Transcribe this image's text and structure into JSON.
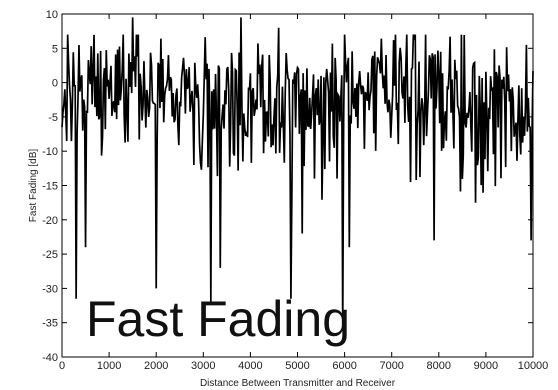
{
  "chart_data": {
    "type": "line",
    "title": "",
    "xlabel": "Distance Between Transmitter and Receiver",
    "ylabel": "Fast Fading [dB]",
    "xlim": [
      0,
      10000
    ],
    "ylim": [
      -40,
      10
    ],
    "grid": false,
    "x_ticks": [
      0,
      1000,
      2000,
      3000,
      4000,
      5000,
      6000,
      7000,
      8000,
      9000,
      10000
    ],
    "y_ticks": [
      10,
      5,
      0,
      -5,
      -10,
      -15,
      -20,
      -25,
      -30,
      -35,
      -40
    ],
    "annotation": "Fast Fading",
    "series": [
      {
        "color": "#000000",
        "sample_step": 20,
        "deep_fades": [
          {
            "x": 300,
            "y": -31.5
          },
          {
            "x": 500,
            "y": -24
          },
          {
            "x": 2000,
            "y": -30
          },
          {
            "x": 3150,
            "y": -32
          },
          {
            "x": 3350,
            "y": -27
          },
          {
            "x": 4850,
            "y": -31.5
          },
          {
            "x": 5100,
            "y": -22
          },
          {
            "x": 5950,
            "y": -36
          },
          {
            "x": 6100,
            "y": -24
          },
          {
            "x": 7900,
            "y": -23
          },
          {
            "x": 9950,
            "y": -23
          }
        ],
        "peaks": [
          {
            "x": 1500,
            "y": 9.5
          },
          {
            "x": 3800,
            "y": 9.5
          },
          {
            "x": 4600,
            "y": 8
          },
          {
            "x": 9850,
            "y": 5.5
          }
        ]
      }
    ]
  }
}
